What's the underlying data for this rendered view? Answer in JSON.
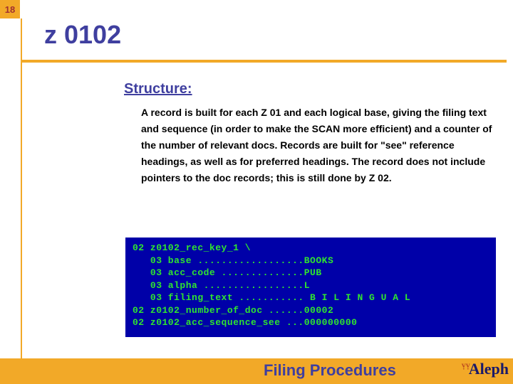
{
  "slide": {
    "number": "18",
    "title": "z 0102",
    "subtitle": "Structure:",
    "body": "A record is built for each Z 01 and each logical base, giving the filing text and sequence (in order to make the SCAN more efficient) and a counter of the number of relevant docs. Records are built for \"see\" reference headings, as well as for preferred headings. The record does not include pointers to the doc records; this is still done by Z 02."
  },
  "code": {
    "lines": [
      "02 z0102_rec_key_1 \\",
      "   03 base ..................BOOKS",
      "   03 acc_code ..............PUB",
      "   03 alpha .................L",
      "   03 filing_text ........... B I L I N G U A L",
      "02 z0102_number_of_doc ......00002",
      "02 z0102_acc_sequence_see ...000000000"
    ],
    "background_color": "#0000a8",
    "text_color": "#2fe52f",
    "font_family": "Courier New"
  },
  "footer": {
    "title": "Filing Procedures",
    "logo_text": "Aleph"
  },
  "colors": {
    "accent_orange": "#f2a928",
    "title_blue": "#3f3f9f",
    "slide_number_text": "#a03030",
    "body_text": "#000000",
    "background": "#ffffff"
  }
}
